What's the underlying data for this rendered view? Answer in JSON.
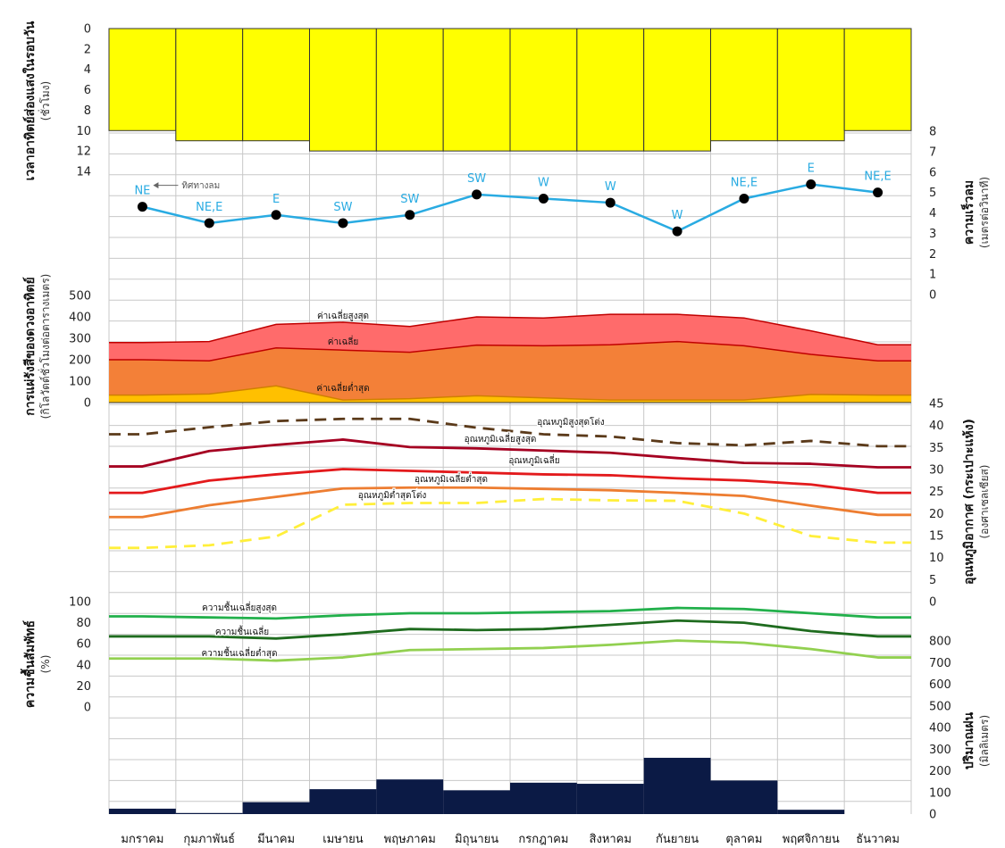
{
  "chart_data": {
    "type": "composite",
    "months": [
      "มกราคม",
      "กุมภาพันธ์",
      "มีนาคม",
      "เมษายน",
      "พฤษภาคม",
      "มิถุนายน",
      "กรกฎาคม",
      "สิงหาคม",
      "กันยายน",
      "ตุลาคม",
      "พฤศจิกายน",
      "ธันวาคม"
    ],
    "colors": {
      "sunshine": "#ffff00",
      "wind": "#29abe2",
      "rad_max": "#ff6b6b",
      "rad_mean": "#f38038",
      "rad_min": "#ffc000",
      "t_abs_max": "#5b3a1a",
      "t_mean_max": "#a50021",
      "t_mean": "#e31a1c",
      "t_mean_min": "#ed7d31",
      "t_abs_min": "#ffef3a",
      "rh_max": "#22b04b",
      "rh_mean": "#1e6b1e",
      "rh_min": "#92d050",
      "rain": "#0b1a45",
      "grid": "#c8c8c8"
    },
    "sunshine": {
      "ylabel": "เวลาอาทิตย์ส่องแสงในรอบวัน",
      "yunit": "(ชั่วโมง)",
      "ylim": [
        0,
        16
      ],
      "yticks": [
        0,
        2,
        4,
        6,
        8,
        10,
        12,
        14
      ],
      "values": [
        10,
        11,
        11,
        12,
        12,
        12,
        12,
        12,
        12,
        11,
        11,
        10
      ]
    },
    "wind": {
      "ylabel": "ความเร็วลม",
      "yunit": "(เมตรต่อวินาที)",
      "ylim": [
        0,
        8
      ],
      "yticks": [
        0,
        1,
        2,
        3,
        4,
        5,
        6,
        7,
        8
      ],
      "values": [
        4.3,
        3.5,
        3.9,
        3.5,
        3.9,
        4.9,
        4.7,
        4.5,
        3.1,
        4.7,
        5.4,
        5.0
      ],
      "directions": [
        "NE",
        "NE,E",
        "E",
        "SW",
        "SW",
        "SW",
        "W",
        "W",
        "W",
        "NE,E",
        "E",
        "NE,E"
      ],
      "annotation": "ทิศทางลม"
    },
    "radiation": {
      "ylabel": "การแผ่รังสีของดวงอาทิตย์",
      "yunit": "(กิโลวัตต์ชั่วโมงต่อตารางเมตร)",
      "ylim": [
        0,
        500
      ],
      "yticks": [
        0,
        100,
        200,
        300,
        400,
        500
      ],
      "series": [
        {
          "key": "max",
          "name": "ค่าเฉลี่ยสูงสุด",
          "values": [
            280,
            285,
            365,
            375,
            355,
            400,
            395,
            412,
            412,
            395,
            335,
            270
          ]
        },
        {
          "key": "mean",
          "name": "ค่าเฉลี่ย",
          "values": [
            200,
            195,
            255,
            245,
            235,
            268,
            265,
            270,
            285,
            265,
            225,
            195
          ]
        },
        {
          "key": "min",
          "name": "ค่าเฉลี่ยต่ำสุด",
          "values": [
            35,
            40,
            78,
            12,
            18,
            32,
            22,
            12,
            12,
            12,
            38,
            35
          ]
        }
      ]
    },
    "temperature": {
      "ylabel": "อุณหภูมิอากาศ (กระเปาะแห้ง)",
      "yunit": "(องศาเซลเซียส)",
      "ylim": [
        0,
        45
      ],
      "yticks": [
        0,
        5,
        10,
        15,
        20,
        25,
        30,
        35,
        40,
        45
      ],
      "series": [
        {
          "key": "abs_max",
          "name": "อุณหภูมิสูงสุดโต่ง",
          "values": [
            38,
            39.6,
            41,
            41.5,
            41.5,
            39.5,
            38,
            37.5,
            36,
            35.5,
            36.5,
            35.3
          ]
        },
        {
          "key": "mean_max",
          "name": "อุณหภูมิเฉลี่ยสูงสุด",
          "values": [
            30.7,
            34.2,
            35.6,
            36.8,
            35.1,
            34.8,
            34.3,
            33.8,
            32.6,
            31.5,
            31.3,
            30.5
          ]
        },
        {
          "key": "mean",
          "name": "อุณหภูมิเฉลี่ย",
          "values": [
            24.7,
            27.5,
            28.9,
            30.1,
            29.7,
            29.3,
            28.9,
            28.7,
            28.0,
            27.5,
            26.6,
            24.7
          ]
        },
        {
          "key": "mean_min",
          "name": "อุณหภูมิเฉลี่ยต่ำสุด",
          "values": [
            19.2,
            21.9,
            23.8,
            25.7,
            25.9,
            25.9,
            25.6,
            25.3,
            24.7,
            24.0,
            21.8,
            19.7
          ]
        },
        {
          "key": "abs_min",
          "name": "อุณหภูมิต่ำสุดโต่ง",
          "values": [
            12.2,
            12.8,
            14.8,
            22.0,
            22.4,
            22.4,
            23.3,
            23.0,
            22.9,
            20.0,
            14.9,
            13.4
          ]
        }
      ]
    },
    "humidity": {
      "ylabel": "ความชื้นสัมพัทธ์",
      "yunit": "(%)",
      "ylim": [
        0,
        100
      ],
      "yticks": [
        0,
        20,
        40,
        60,
        80,
        100
      ],
      "series": [
        {
          "key": "max",
          "name": "ความชื้นเฉลี่ยสูงสุด",
          "values": [
            86,
            85,
            84,
            87,
            89,
            89,
            90,
            91,
            94,
            93,
            89,
            85
          ]
        },
        {
          "key": "mean",
          "name": "ความชื้นเฉลี่ย",
          "values": [
            67,
            67,
            65,
            69,
            74,
            73,
            74,
            78,
            82,
            80,
            72,
            67
          ]
        },
        {
          "key": "min",
          "name": "ความชื้นเฉลี่ยต่ำสุด",
          "values": [
            46,
            46,
            44,
            47,
            54,
            55,
            56,
            59,
            63,
            61,
            55,
            47
          ]
        }
      ]
    },
    "rainfall": {
      "ylabel": "ปริมาณฝน",
      "yunit": "(มิลลิเมตร)",
      "ylim": [
        0,
        800
      ],
      "yticks": [
        0,
        100,
        200,
        300,
        400,
        500,
        600,
        700,
        800
      ],
      "values": [
        25,
        5,
        55,
        115,
        160,
        110,
        145,
        140,
        260,
        155,
        20,
        0
      ]
    }
  }
}
